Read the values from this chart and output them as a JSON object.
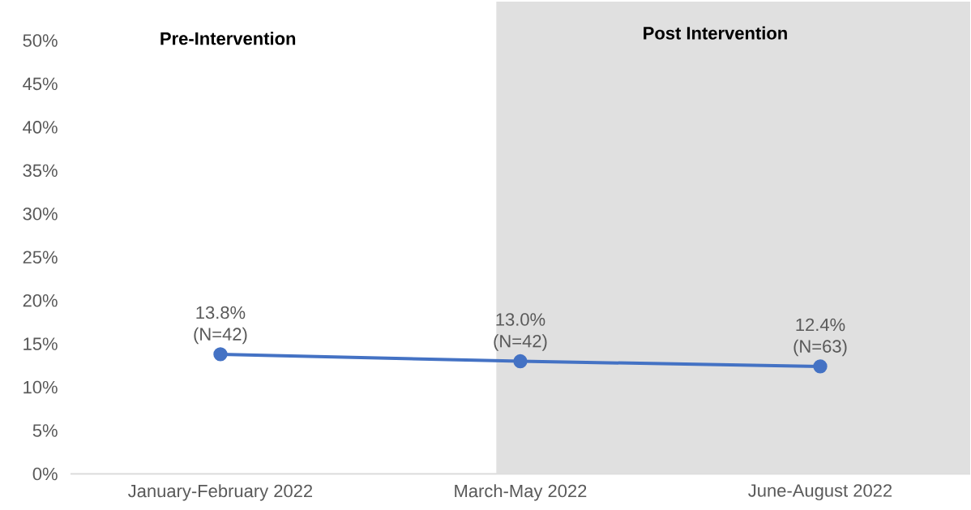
{
  "chart_data": {
    "type": "line",
    "categories": [
      "January-February 2022",
      "March-May 2022",
      "June-August 2022"
    ],
    "series": [
      {
        "color": "#4472c4",
        "values": [
          13.8,
          13.0,
          12.4
        ],
        "value_labels": [
          "13.8% (N=42)",
          "13.0% (N=42)",
          "12.4% (N=63)"
        ]
      }
    ],
    "ylim": [
      0,
      50
    ],
    "yticks": [
      {
        "value": 0,
        "label": "0%"
      },
      {
        "value": 5,
        "label": "5%"
      },
      {
        "value": 10,
        "label": "10%"
      },
      {
        "value": 15,
        "label": "15%"
      },
      {
        "value": 20,
        "label": "20%"
      },
      {
        "value": 25,
        "label": "25%"
      },
      {
        "value": 30,
        "label": "30%"
      },
      {
        "value": 35,
        "label": "35%"
      },
      {
        "value": 40,
        "label": "40%"
      },
      {
        "value": 45,
        "label": "45%"
      },
      {
        "value": 50,
        "label": "50%"
      }
    ],
    "bands": [
      {
        "axis": "x",
        "from": "March-May 2022",
        "to": "June-August 2022",
        "label": "Post Intervention",
        "color": "#e0e0e0"
      }
    ],
    "annotations": [
      "Pre-Intervention"
    ],
    "marker": "circle"
  }
}
